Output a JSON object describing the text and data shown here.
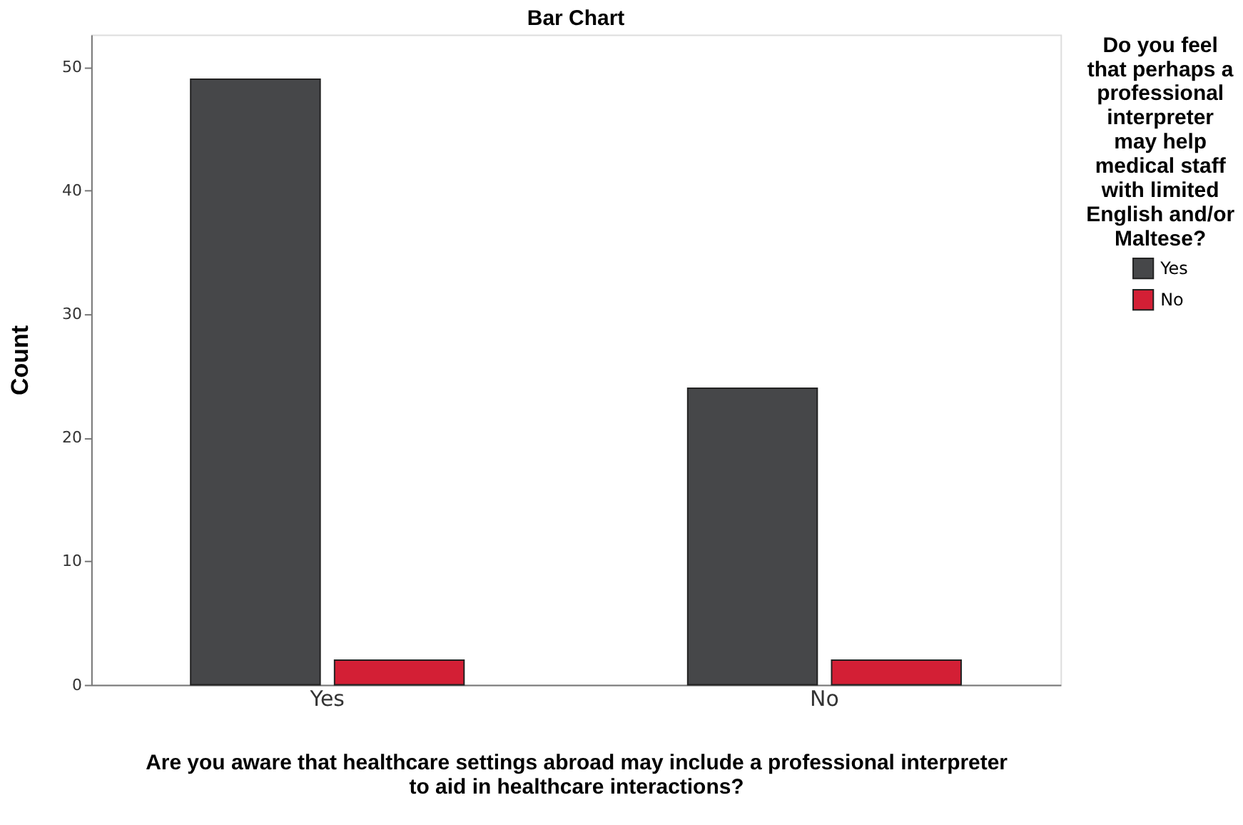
{
  "chart_data": {
    "type": "bar",
    "title": "Bar Chart",
    "xlabel": "Are you aware that healthcare settings abroad may include a professional interpreter to aid in healthcare interactions?",
    "ylabel": "Count",
    "legend_title": "Do you feel that perhaps a professional interpreter may help medical staff with limited English and/or Maltese?",
    "categories": [
      "Yes",
      "No"
    ],
    "series": [
      {
        "name": "Yes",
        "color": "#464749",
        "values": [
          49,
          24
        ]
      },
      {
        "name": "No",
        "color": "#d31f35",
        "values": [
          2,
          2
        ]
      }
    ],
    "ylim": [
      0,
      52.6
    ],
    "yticks": [
      0,
      10,
      20,
      30,
      40,
      50
    ],
    "grid": false,
    "legend": "top right"
  }
}
